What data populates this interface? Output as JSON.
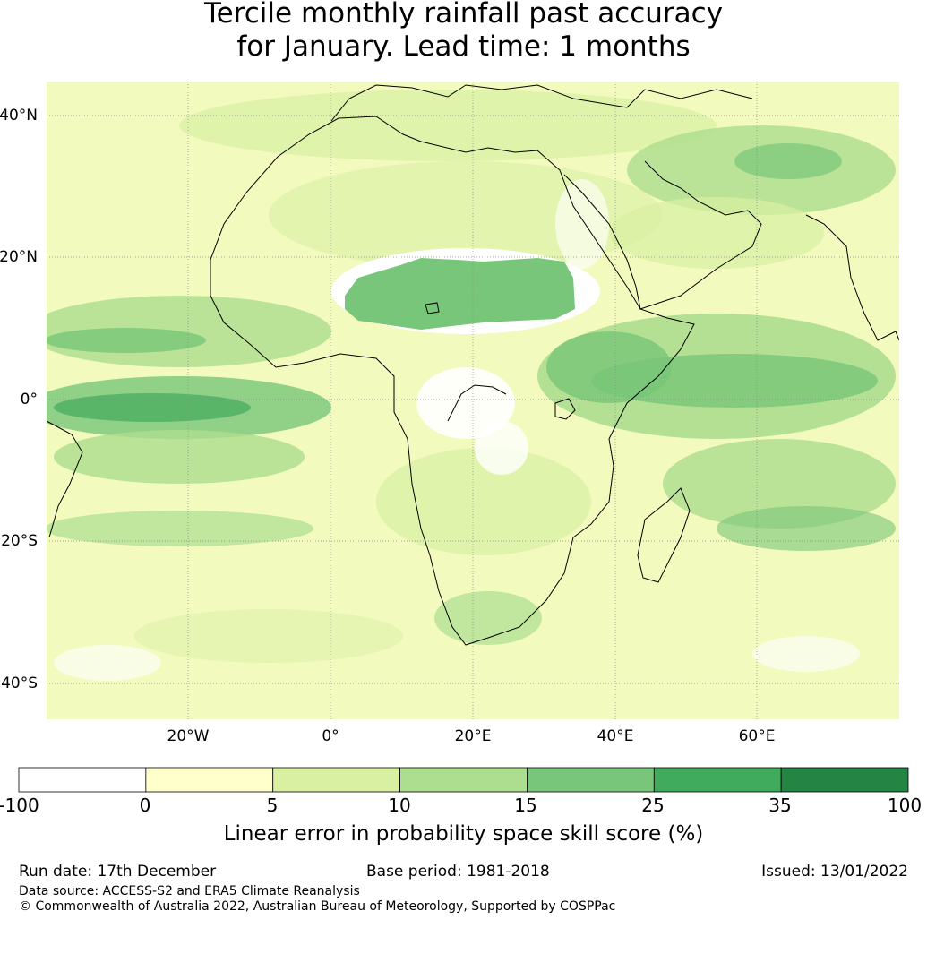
{
  "title": {
    "line1": "Tercile monthly rainfall past accuracy",
    "line2": "for January. Lead time: 1 months"
  },
  "map": {
    "lat_labels": [
      "40°N",
      "20°N",
      "0°",
      "20°S",
      "40°S"
    ],
    "lon_labels": [
      "20°W",
      "0°",
      "20°E",
      "40°E",
      "60°E"
    ],
    "extent": {
      "lon_min": -40,
      "lon_max": 80,
      "lat_min": -45,
      "lat_max": 45
    }
  },
  "colorbar": {
    "ticks": [
      "-100",
      "0",
      "5",
      "10",
      "15",
      "25",
      "35",
      "100"
    ],
    "colors": [
      "#ffffff",
      "#ffffcc",
      "#d9f0a3",
      "#addd8e",
      "#78c679",
      "#41ab5d",
      "#238443"
    ],
    "label": "Linear error in probability space skill score (%)"
  },
  "footer": {
    "run_date": "Run date: 17th December",
    "base_period": "Base period: 1981-2018",
    "issued": "Issued: 13/01/2022",
    "data_source": "Data source: ACCESS-S2 and ERA5 Climate Reanalysis",
    "copyright": "© Commonwealth of Australia 2022, Australian Bureau of Meteorology, Supported by COSPPac"
  }
}
